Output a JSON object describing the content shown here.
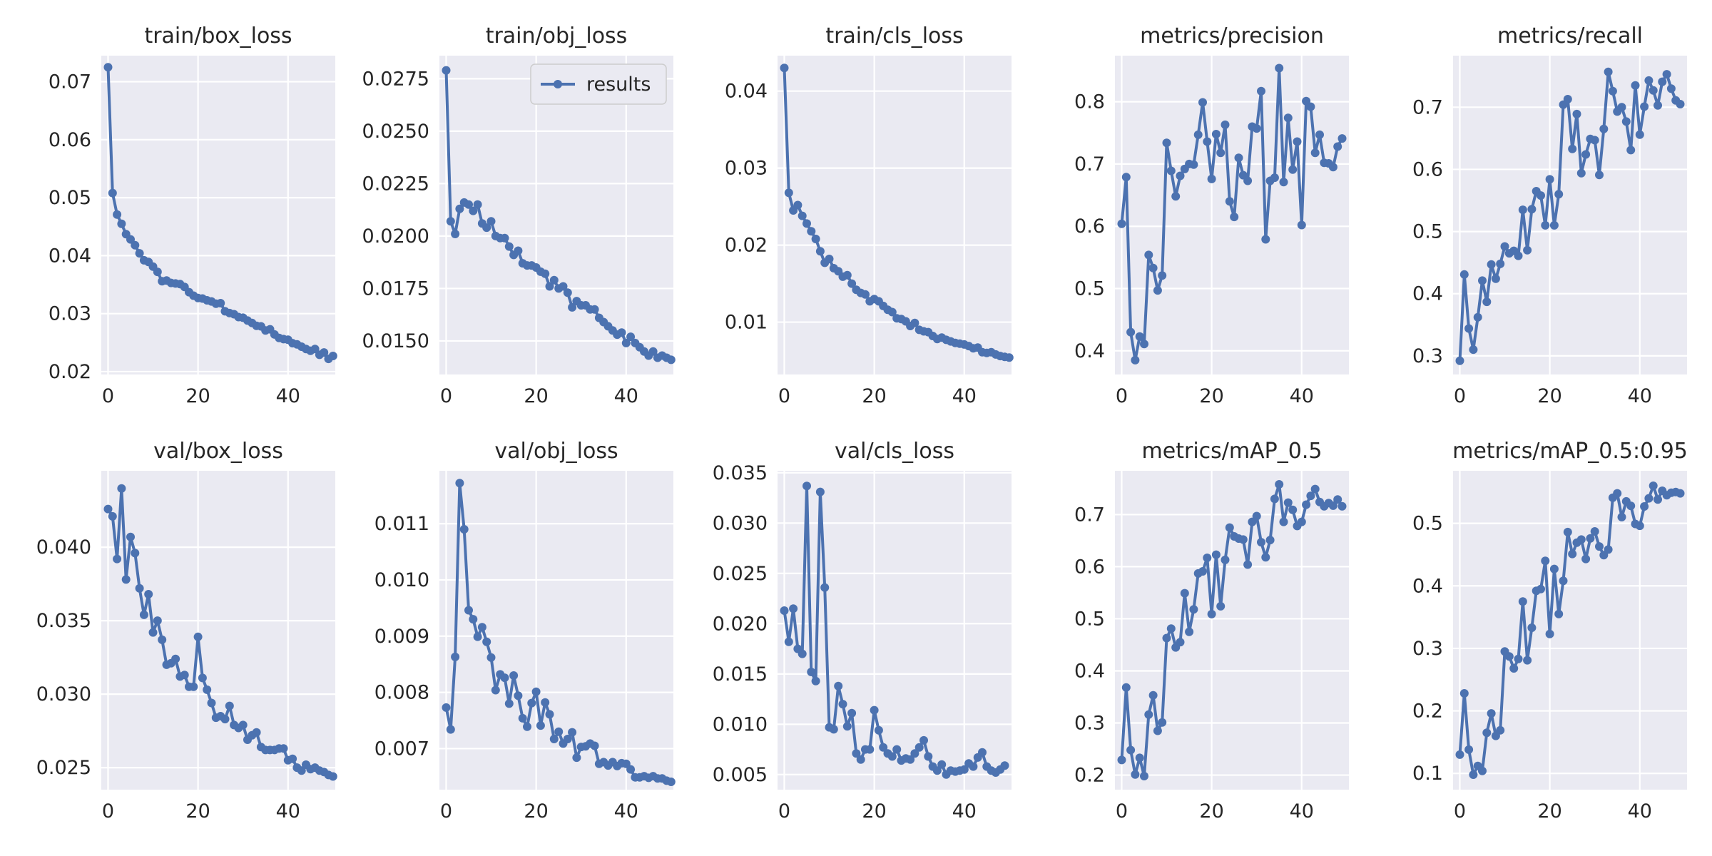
{
  "figure": {
    "background": "#ffffff",
    "panel_bg": "#eaeaf2",
    "grid": "#ffffff",
    "line_color": "#4c72b0"
  },
  "chart_data": [
    {
      "type": "line",
      "title": "train/box_loss",
      "xlabel": "",
      "ylabel": "",
      "xlim": [
        -1.5,
        50.5
      ],
      "ylim": [
        0.0195,
        0.0745
      ],
      "xticks": [
        0,
        20,
        40
      ],
      "yticks": [
        0.02,
        0.03,
        0.04,
        0.05,
        0.06,
        0.07
      ],
      "ytick_labels": [
        "0.02",
        "0.03",
        "0.04",
        "0.05",
        "0.06",
        "0.07"
      ],
      "grid": true,
      "series": [
        {
          "name": "results",
          "x_start": 0,
          "values": [
            0.0725,
            0.0508,
            0.0471,
            0.0455,
            0.0437,
            0.0428,
            0.0418,
            0.0404,
            0.0392,
            0.0389,
            0.0381,
            0.0372,
            0.0356,
            0.0357,
            0.0353,
            0.0352,
            0.0351,
            0.0346,
            0.0337,
            0.0331,
            0.0327,
            0.0326,
            0.0323,
            0.0321,
            0.0317,
            0.0318,
            0.0304,
            0.0301,
            0.0299,
            0.0294,
            0.0293,
            0.0288,
            0.0284,
            0.0279,
            0.0278,
            0.0271,
            0.0273,
            0.0264,
            0.0258,
            0.0256,
            0.0255,
            0.0249,
            0.0247,
            0.0243,
            0.0239,
            0.0236,
            0.0239,
            0.0229,
            0.0233,
            0.0222,
            0.0227
          ]
        }
      ]
    },
    {
      "type": "line",
      "title": "train/obj_loss",
      "xlabel": "",
      "ylabel": "",
      "xlim": [
        -1.5,
        50.5
      ],
      "ylim": [
        0.0134,
        0.0286
      ],
      "xticks": [
        0,
        20,
        40
      ],
      "yticks": [
        0.015,
        0.0175,
        0.02,
        0.0225,
        0.025,
        0.0275
      ],
      "ytick_labels": [
        "0.0150",
        "0.0175",
        "0.0200",
        "0.0225",
        "0.0250",
        "0.0275"
      ],
      "grid": true,
      "legend": {
        "position": "upper right",
        "entries": [
          "results"
        ]
      },
      "series": [
        {
          "name": "results",
          "x_start": 0,
          "values": [
            0.0279,
            0.0207,
            0.0201,
            0.0213,
            0.0216,
            0.0215,
            0.0212,
            0.0215,
            0.0206,
            0.0204,
            0.0207,
            0.02,
            0.0199,
            0.0199,
            0.0195,
            0.0191,
            0.0193,
            0.0187,
            0.0186,
            0.0186,
            0.0185,
            0.0183,
            0.0182,
            0.0176,
            0.0179,
            0.0175,
            0.0176,
            0.0173,
            0.0166,
            0.0169,
            0.0167,
            0.0167,
            0.0165,
            0.0165,
            0.0161,
            0.0159,
            0.0157,
            0.0155,
            0.0153,
            0.0154,
            0.0149,
            0.0152,
            0.0149,
            0.0147,
            0.0145,
            0.0143,
            0.0145,
            0.0142,
            0.0143,
            0.0142,
            0.0141
          ]
        }
      ]
    },
    {
      "type": "line",
      "title": "train/cls_loss",
      "xlabel": "",
      "ylabel": "",
      "xlim": [
        -1.5,
        50.5
      ],
      "ylim": [
        0.0032,
        0.0446
      ],
      "xticks": [
        0,
        20,
        40
      ],
      "yticks": [
        0.01,
        0.02,
        0.03,
        0.04
      ],
      "ytick_labels": [
        "0.01",
        "0.02",
        "0.03",
        "0.04"
      ],
      "grid": true,
      "series": [
        {
          "name": "results",
          "x_start": 0,
          "values": [
            0.043,
            0.0268,
            0.0245,
            0.0252,
            0.0238,
            0.0228,
            0.0218,
            0.0208,
            0.0192,
            0.0177,
            0.0182,
            0.017,
            0.0166,
            0.0159,
            0.0161,
            0.015,
            0.0142,
            0.0138,
            0.0136,
            0.0127,
            0.013,
            0.0127,
            0.0121,
            0.0116,
            0.0113,
            0.0105,
            0.0104,
            0.0101,
            0.0095,
            0.0099,
            0.009,
            0.0088,
            0.0087,
            0.0082,
            0.0078,
            0.008,
            0.0077,
            0.0075,
            0.0073,
            0.0072,
            0.0071,
            0.0069,
            0.0066,
            0.0067,
            0.0061,
            0.006,
            0.0061,
            0.0058,
            0.0056,
            0.0055,
            0.0054
          ]
        }
      ]
    },
    {
      "type": "line",
      "title": "metrics/precision",
      "xlabel": "",
      "ylabel": "",
      "xlim": [
        -1.5,
        50.5
      ],
      "ylim": [
        0.362,
        0.874
      ],
      "xticks": [
        0,
        20,
        40
      ],
      "yticks": [
        0.4,
        0.5,
        0.6,
        0.7,
        0.8
      ],
      "ytick_labels": [
        "0.4",
        "0.5",
        "0.6",
        "0.7",
        "0.8"
      ],
      "grid": true,
      "series": [
        {
          "name": "results",
          "x_start": 0,
          "values": [
            0.604,
            0.679,
            0.43,
            0.385,
            0.423,
            0.411,
            0.554,
            0.533,
            0.497,
            0.521,
            0.734,
            0.689,
            0.648,
            0.681,
            0.692,
            0.7,
            0.699,
            0.747,
            0.799,
            0.736,
            0.676,
            0.748,
            0.718,
            0.763,
            0.64,
            0.615,
            0.71,
            0.682,
            0.673,
            0.76,
            0.757,
            0.817,
            0.579,
            0.673,
            0.678,
            0.854,
            0.671,
            0.774,
            0.691,
            0.736,
            0.602,
            0.801,
            0.792,
            0.718,
            0.747,
            0.702,
            0.701,
            0.695,
            0.728,
            0.741
          ]
        }
      ]
    },
    {
      "type": "line",
      "title": "metrics/recall",
      "xlabel": "",
      "ylabel": "",
      "xlim": [
        -1.5,
        50.5
      ],
      "ylim": [
        0.27,
        0.783
      ],
      "xticks": [
        0,
        20,
        40
      ],
      "yticks": [
        0.3,
        0.4,
        0.5,
        0.6,
        0.7
      ],
      "ytick_labels": [
        "0.3",
        "0.4",
        "0.5",
        "0.6",
        "0.7"
      ],
      "grid": true,
      "series": [
        {
          "name": "results",
          "x_start": 0,
          "values": [
            0.292,
            0.431,
            0.344,
            0.31,
            0.362,
            0.421,
            0.387,
            0.447,
            0.424,
            0.448,
            0.476,
            0.465,
            0.469,
            0.461,
            0.535,
            0.47,
            0.536,
            0.565,
            0.558,
            0.51,
            0.584,
            0.51,
            0.56,
            0.704,
            0.713,
            0.633,
            0.689,
            0.594,
            0.624,
            0.649,
            0.647,
            0.591,
            0.665,
            0.757,
            0.726,
            0.693,
            0.7,
            0.677,
            0.631,
            0.735,
            0.656,
            0.701,
            0.743,
            0.727,
            0.703,
            0.741,
            0.753,
            0.73,
            0.711,
            0.705
          ]
        }
      ]
    },
    {
      "type": "line",
      "title": "val/box_loss",
      "xlabel": "",
      "ylabel": "",
      "xlim": [
        -1.5,
        50.5
      ],
      "ylim": [
        0.0235,
        0.0452
      ],
      "xticks": [
        0,
        20,
        40
      ],
      "yticks": [
        0.025,
        0.03,
        0.035,
        0.04
      ],
      "ytick_labels": [
        "0.025",
        "0.030",
        "0.035",
        "0.040"
      ],
      "grid": true,
      "series": [
        {
          "name": "results",
          "x_start": 0,
          "values": [
            0.0426,
            0.0421,
            0.0392,
            0.044,
            0.0378,
            0.0407,
            0.0396,
            0.0372,
            0.0354,
            0.0368,
            0.0342,
            0.035,
            0.0337,
            0.032,
            0.0321,
            0.0324,
            0.0312,
            0.0313,
            0.0305,
            0.0305,
            0.0339,
            0.0311,
            0.0303,
            0.0294,
            0.0284,
            0.0285,
            0.0283,
            0.0292,
            0.0279,
            0.0277,
            0.0279,
            0.0269,
            0.0272,
            0.0274,
            0.0264,
            0.0262,
            0.0262,
            0.0262,
            0.0263,
            0.0263,
            0.0255,
            0.0256,
            0.025,
            0.0248,
            0.0252,
            0.0249,
            0.025,
            0.0248,
            0.0247,
            0.0245,
            0.0244
          ]
        }
      ]
    },
    {
      "type": "line",
      "title": "val/obj_loss",
      "xlabel": "",
      "ylabel": "",
      "xlim": [
        -1.5,
        50.5
      ],
      "ylim": [
        0.00627,
        0.01194
      ],
      "xticks": [
        0,
        20,
        40
      ],
      "yticks": [
        0.007,
        0.008,
        0.009,
        0.01,
        0.011
      ],
      "ytick_labels": [
        "0.007",
        "0.008",
        "0.009",
        "0.010",
        "0.011"
      ],
      "grid": true,
      "series": [
        {
          "name": "results",
          "x_start": 0,
          "values": [
            0.00773,
            0.00734,
            0.00863,
            0.01172,
            0.0109,
            0.00946,
            0.0093,
            0.00899,
            0.00916,
            0.0089,
            0.00862,
            0.00804,
            0.00832,
            0.00826,
            0.0078,
            0.0083,
            0.00794,
            0.00754,
            0.00739,
            0.00781,
            0.00801,
            0.00741,
            0.00782,
            0.00761,
            0.00717,
            0.0073,
            0.00709,
            0.00717,
            0.00729,
            0.00684,
            0.00703,
            0.00704,
            0.00709,
            0.00705,
            0.00673,
            0.00676,
            0.0067,
            0.00676,
            0.00669,
            0.00674,
            0.00673,
            0.00663,
            0.00649,
            0.00649,
            0.00651,
            0.00648,
            0.00651,
            0.00647,
            0.00647,
            0.00643,
            0.00641
          ]
        }
      ]
    },
    {
      "type": "line",
      "title": "val/cls_loss",
      "xlabel": "",
      "ylabel": "",
      "xlim": [
        -1.5,
        50.5
      ],
      "ylim": [
        0.0035,
        0.0352
      ],
      "xticks": [
        0,
        20,
        40
      ],
      "yticks": [
        0.005,
        0.01,
        0.015,
        0.02,
        0.025,
        0.03,
        0.035
      ],
      "ytick_labels": [
        "0.005",
        "0.010",
        "0.015",
        "0.020",
        "0.025",
        "0.030",
        "0.035"
      ],
      "grid": true,
      "series": [
        {
          "name": "results",
          "x_start": 0,
          "values": [
            0.0213,
            0.0182,
            0.0215,
            0.0175,
            0.017,
            0.0337,
            0.0152,
            0.0143,
            0.0331,
            0.0236,
            0.0097,
            0.0095,
            0.0138,
            0.012,
            0.0098,
            0.0111,
            0.0071,
            0.0065,
            0.0075,
            0.0075,
            0.0114,
            0.0094,
            0.0077,
            0.0071,
            0.0068,
            0.0075,
            0.0064,
            0.0066,
            0.0065,
            0.0071,
            0.0077,
            0.0084,
            0.0068,
            0.0058,
            0.0054,
            0.006,
            0.005,
            0.0054,
            0.0053,
            0.0054,
            0.0055,
            0.0061,
            0.0058,
            0.0067,
            0.0072,
            0.0058,
            0.0054,
            0.0052,
            0.0055,
            0.0059
          ]
        }
      ]
    },
    {
      "type": "line",
      "title": "metrics/mAP_0.5",
      "xlabel": "",
      "ylabel": "",
      "xlim": [
        -1.5,
        50.5
      ],
      "ylim": [
        0.172,
        0.784
      ],
      "xticks": [
        0,
        20,
        40
      ],
      "yticks": [
        0.2,
        0.3,
        0.4,
        0.5,
        0.6,
        0.7
      ],
      "ytick_labels": [
        "0.2",
        "0.3",
        "0.4",
        "0.5",
        "0.6",
        "0.7"
      ],
      "grid": true,
      "series": [
        {
          "name": "results",
          "x_start": 0,
          "values": [
            0.229,
            0.368,
            0.248,
            0.201,
            0.233,
            0.198,
            0.316,
            0.353,
            0.285,
            0.301,
            0.463,
            0.481,
            0.445,
            0.455,
            0.549,
            0.475,
            0.518,
            0.587,
            0.591,
            0.617,
            0.509,
            0.623,
            0.524,
            0.613,
            0.675,
            0.658,
            0.654,
            0.652,
            0.604,
            0.686,
            0.697,
            0.647,
            0.618,
            0.651,
            0.73,
            0.758,
            0.686,
            0.723,
            0.709,
            0.678,
            0.686,
            0.719,
            0.736,
            0.749,
            0.724,
            0.716,
            0.722,
            0.717,
            0.729,
            0.716
          ]
        }
      ]
    },
    {
      "type": "line",
      "title": "metrics/mAP_0.5:0.95",
      "xlabel": "",
      "ylabel": "",
      "xlim": [
        -1.5,
        50.5
      ],
      "ylim": [
        0.074,
        0.584
      ],
      "xticks": [
        0,
        20,
        40
      ],
      "yticks": [
        0.1,
        0.2,
        0.3,
        0.4,
        0.5
      ],
      "ytick_labels": [
        "0.1",
        "0.2",
        "0.3",
        "0.4",
        "0.5"
      ],
      "grid": true,
      "series": [
        {
          "name": "results",
          "x_start": 0,
          "values": [
            0.13,
            0.228,
            0.138,
            0.098,
            0.112,
            0.104,
            0.165,
            0.196,
            0.16,
            0.169,
            0.295,
            0.287,
            0.268,
            0.283,
            0.375,
            0.281,
            0.333,
            0.392,
            0.395,
            0.44,
            0.323,
            0.427,
            0.355,
            0.408,
            0.486,
            0.451,
            0.469,
            0.474,
            0.443,
            0.476,
            0.487,
            0.463,
            0.449,
            0.458,
            0.541,
            0.548,
            0.51,
            0.535,
            0.528,
            0.499,
            0.496,
            0.527,
            0.54,
            0.56,
            0.538,
            0.552,
            0.545,
            0.549,
            0.55,
            0.548
          ]
        }
      ]
    }
  ]
}
